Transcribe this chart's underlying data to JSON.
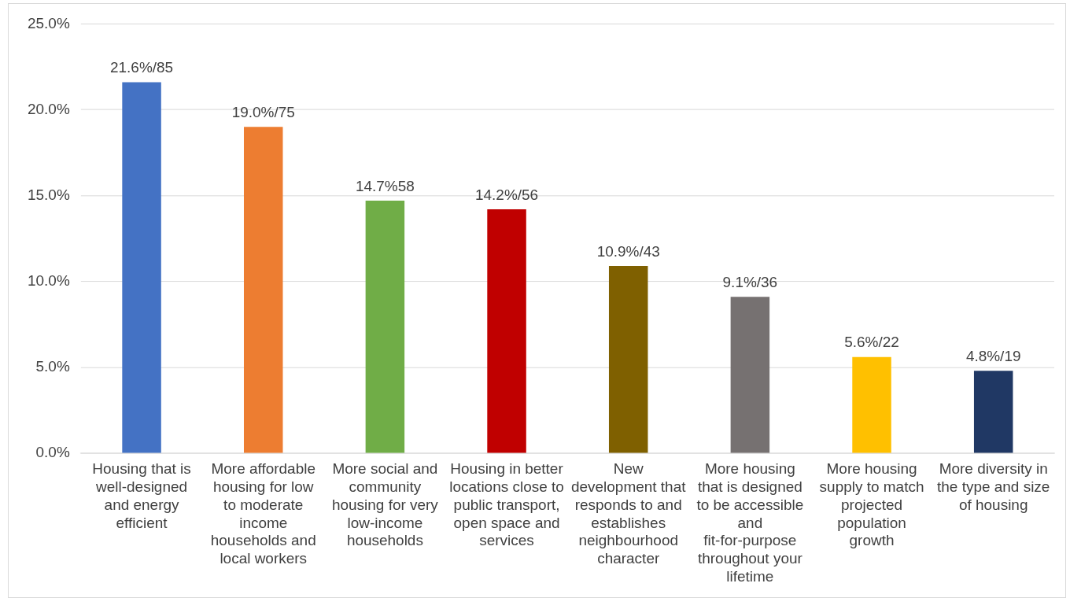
{
  "chart_data": {
    "type": "bar",
    "categories": [
      "Housing that is well-designed and energy efficient",
      "More affordable housing for low to moderate income households and local workers",
      "More social and community housing for very low-income households",
      "Housing in better locations close to public transport, open space and services",
      "New development that responds to and establishes neighbourhood character",
      "More housing that is designed to be accessible and fit-for-purpose throughout your lifetime",
      "More housing supply to match projected population growth",
      "More diversity in the type and size of housing"
    ],
    "values": [
      21.6,
      19.0,
      14.7,
      14.2,
      10.9,
      9.1,
      5.6,
      4.8
    ],
    "colors": [
      "#4472c4",
      "#ed7d31",
      "#70ad47",
      "#c00000",
      "#7f6000",
      "#767171",
      "#ffc000",
      "#203864"
    ],
    "value_labels": [
      "21.6%/85",
      "19.0%/75",
      "14.7%58",
      "14.2%/56",
      "10.9%/43",
      "9.1%/36",
      "5.6%/22",
      "4.8%/19"
    ],
    "ylim": [
      0,
      25
    ],
    "yticks": [
      {
        "value": 0,
        "label": "0.0%"
      },
      {
        "value": 5,
        "label": "5.0%"
      },
      {
        "value": 10,
        "label": "10.0%"
      },
      {
        "value": 15,
        "label": "15.0%"
      },
      {
        "value": 20,
        "label": "20.0%"
      },
      {
        "value": 25,
        "label": "25.0%"
      }
    ],
    "grid": "y",
    "legend": false
  }
}
